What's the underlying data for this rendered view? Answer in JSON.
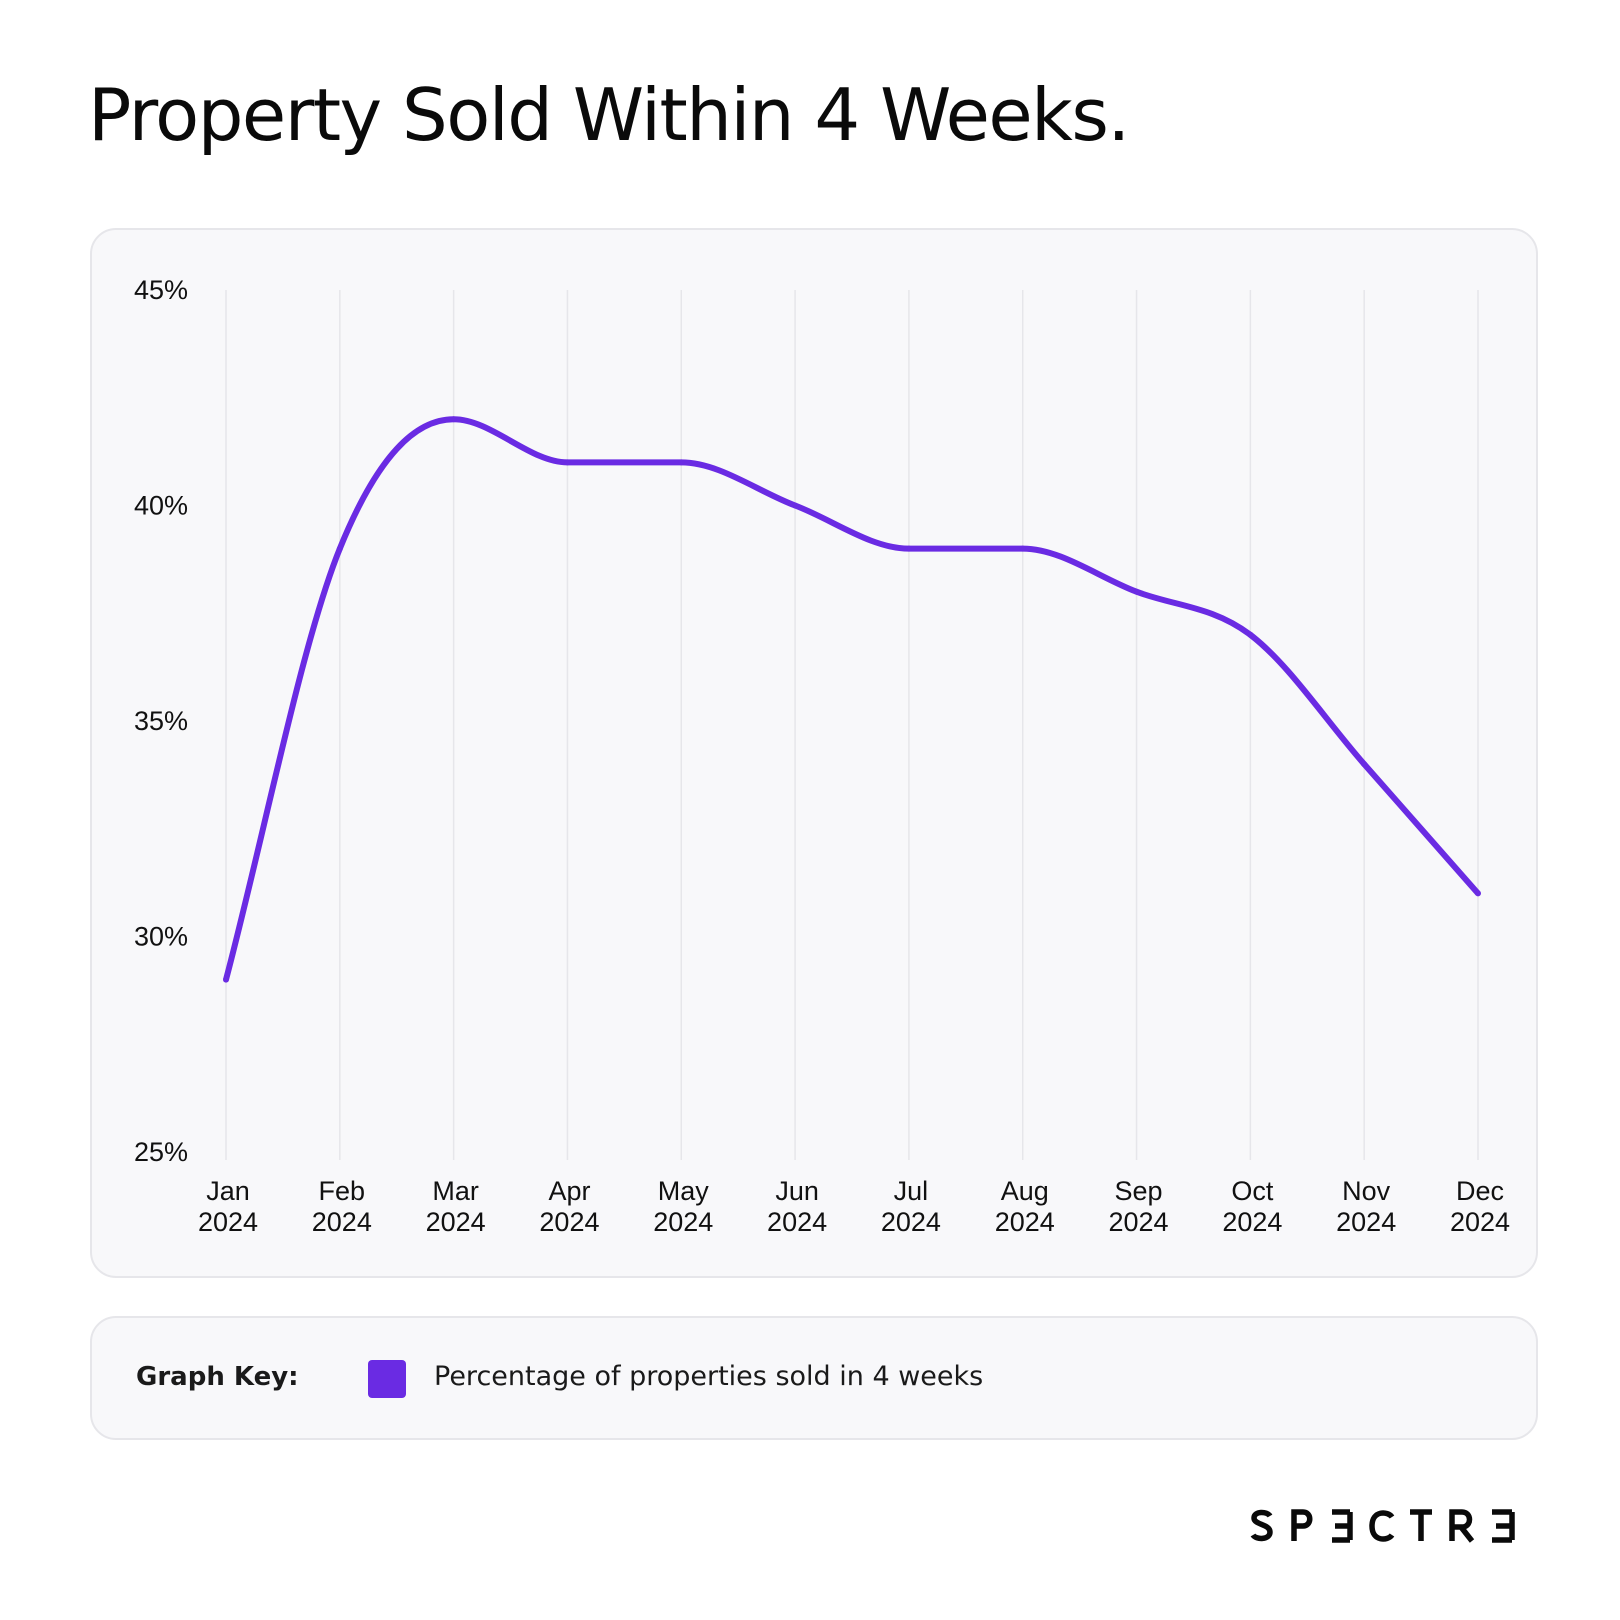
{
  "page": {
    "title": "Property Sold Within 4 Weeks."
  },
  "legend": {
    "heading": "Graph Key:",
    "items": [
      {
        "label": "Percentage of properties sold in 4 weeks",
        "color": "#6a2be3"
      }
    ]
  },
  "brand": {
    "name": "SPECTRE"
  },
  "colors": {
    "accent": "#6a2be3",
    "panel_background": "#f8f8fa",
    "panel_border": "#e6e6ea",
    "gridline": "#e6e6ea"
  },
  "chart_data": {
    "type": "line",
    "title": "",
    "xlabel": "",
    "ylabel": "",
    "categories": [
      [
        "Jan",
        "2024"
      ],
      [
        "Feb",
        "2024"
      ],
      [
        "Mar",
        "2024"
      ],
      [
        "Apr",
        "2024"
      ],
      [
        "May",
        "2024"
      ],
      [
        "Jun",
        "2024"
      ],
      [
        "Jul",
        "2024"
      ],
      [
        "Aug",
        "2024"
      ],
      [
        "Sep",
        "2024"
      ],
      [
        "Oct",
        "2024"
      ],
      [
        "Nov",
        "2024"
      ],
      [
        "Dec",
        "2024"
      ]
    ],
    "series": [
      {
        "name": "Percentage of properties sold in 4 weeks",
        "values": [
          29,
          39,
          42,
          41,
          41,
          40,
          39,
          39,
          38,
          37,
          34,
          31
        ],
        "color": "#6a2be3"
      }
    ],
    "ylim": [
      25,
      45
    ],
    "yticks": [
      "25%",
      "30%",
      "35%",
      "40%",
      "45%"
    ],
    "ytick_values": [
      25,
      30,
      35,
      40,
      45
    ],
    "grid": "vertical",
    "legend_position": "below"
  }
}
